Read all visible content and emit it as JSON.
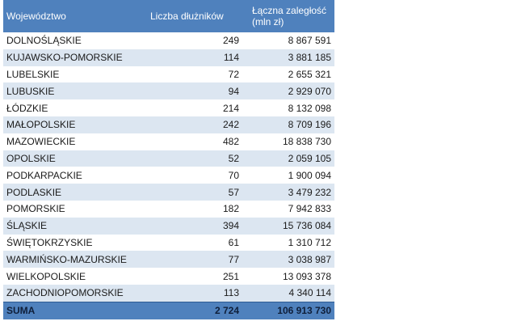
{
  "headers": {
    "region": "Województwo",
    "debtors": "Liczba dłużników",
    "debt": "Łączna zaległość (mln zł)"
  },
  "rows": [
    {
      "region": "DOLNOŚLĄSKIE",
      "debtors": "249",
      "debt": "8 867 591"
    },
    {
      "region": "KUJAWSKO-POMORSKIE",
      "debtors": "114",
      "debt": "3 881 185"
    },
    {
      "region": "LUBELSKIE",
      "debtors": "72",
      "debt": "2 655 321"
    },
    {
      "region": "LUBUSKIE",
      "debtors": "94",
      "debt": "2 929 070"
    },
    {
      "region": "ŁÓDZKIE",
      "debtors": "214",
      "debt": "8 132 098"
    },
    {
      "region": "MAŁOPOLSKIE",
      "debtors": "242",
      "debt": "8 709 196"
    },
    {
      "region": "MAZOWIECKIE",
      "debtors": "482",
      "debt": "18 838 730"
    },
    {
      "region": "OPOLSKIE",
      "debtors": "52",
      "debt": "2 059 105"
    },
    {
      "region": "PODKARPACKIE",
      "debtors": "70",
      "debt": "1 900 094"
    },
    {
      "region": "PODLASKIE",
      "debtors": "57",
      "debt": "3 479 232"
    },
    {
      "region": "POMORSKIE",
      "debtors": "182",
      "debt": "7 942 833"
    },
    {
      "region": "ŚLĄSKIE",
      "debtors": "394",
      "debt": "15 736 084"
    },
    {
      "region": "ŚWIĘTOKRZYSKIE",
      "debtors": "61",
      "debt": "1 310 712"
    },
    {
      "region": "WARMIŃSKO-MAZURSKIE",
      "debtors": "77",
      "debt": "3 038 987"
    },
    {
      "region": "WIELKOPOLSKIE",
      "debtors": "251",
      "debt": "13 093 378"
    },
    {
      "region": "ZACHODNIOPOMORSKIE",
      "debtors": "113",
      "debt": "4 340 114"
    }
  ],
  "total": {
    "region": "SUMA",
    "debtors": "2 724",
    "debt": "106 913 730"
  },
  "colors": {
    "header": "#4f81bd",
    "alt_row": "#dce6f1"
  }
}
